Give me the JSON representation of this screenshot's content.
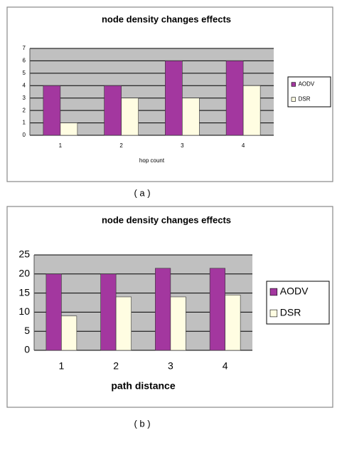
{
  "chart_data": [
    {
      "type": "bar",
      "title": "node density changes effects",
      "x_label": "hop count",
      "caption": "( a )",
      "categories": [
        "1",
        "2",
        "3",
        "4"
      ],
      "series": [
        {
          "name": "AODV",
          "color": "#a3379f",
          "values": [
            4,
            4,
            6,
            6
          ]
        },
        {
          "name": "DSR",
          "color": "#fffde2",
          "values": [
            1,
            3,
            3,
            4
          ]
        }
      ],
      "ylim": [
        0,
        7
      ],
      "yticks": [
        0,
        1,
        2,
        3,
        4,
        5,
        6,
        7
      ],
      "grid": true,
      "legend": "right"
    },
    {
      "type": "bar",
      "title": "node density changes effects",
      "x_label": "path distance",
      "caption": "( b )",
      "categories": [
        "1",
        "2",
        "3",
        "4"
      ],
      "series": [
        {
          "name": "AODV",
          "color": "#a3379f",
          "values": [
            20,
            20,
            21.5,
            21.5
          ]
        },
        {
          "name": "DSR",
          "color": "#fffde2",
          "values": [
            9,
            14,
            14,
            14.5
          ]
        }
      ],
      "ylim": [
        0,
        25
      ],
      "yticks": [
        0,
        5,
        10,
        15,
        20,
        25
      ],
      "grid": true,
      "legend": "right"
    }
  ]
}
